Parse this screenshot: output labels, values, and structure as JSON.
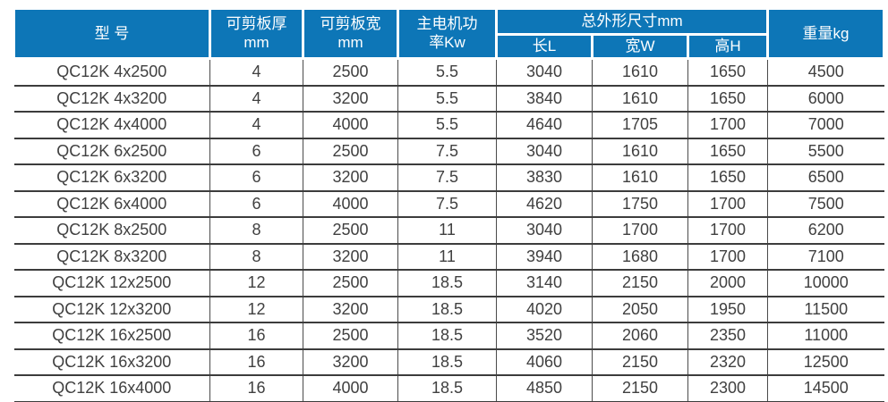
{
  "colors": {
    "header_bg": "#0d76b7",
    "header_text": "#ffffff",
    "body_text": "#404040",
    "row_line": "#3c3c3c",
    "column_line": "#4b4b4b",
    "page_bg": "#ffffff"
  },
  "table": {
    "header": {
      "model": "型 号",
      "thickness_line1": "可剪板厚",
      "thickness_line2": "mm",
      "width_line1": "可剪板宽",
      "width_line2": "mm",
      "power_line1": "主电机功",
      "power_line2": "率Kw",
      "dimensions_group": "总外形尺寸mm",
      "length": "长L",
      "width": "宽W",
      "height": "高H",
      "weight": "重量kg"
    },
    "column_keys": [
      "cell-model",
      "cell-shear-thickness-mm",
      "cell-shear-width-mm",
      "cell-motor-power-kw",
      "cell-dim-length",
      "cell-dim-width",
      "cell-dim-height",
      "cell-weight-kg"
    ],
    "rows": [
      [
        "QC12K 4x2500",
        "4",
        "2500",
        "5.5",
        "3040",
        "1610",
        "1650",
        "4500"
      ],
      [
        "QC12K 4x3200",
        "4",
        "3200",
        "5.5",
        "3840",
        "1610",
        "1650",
        "6000"
      ],
      [
        "QC12K 4x4000",
        "4",
        "4000",
        "5.5",
        "4640",
        "1705",
        "1700",
        "7000"
      ],
      [
        "QC12K 6x2500",
        "6",
        "2500",
        "7.5",
        "3040",
        "1610",
        "1650",
        "5500"
      ],
      [
        "QC12K 6x3200",
        "6",
        "3200",
        "7.5",
        "3830",
        "1610",
        "1650",
        "6500"
      ],
      [
        "QC12K 6x4000",
        "6",
        "4000",
        "7.5",
        "4620",
        "1750",
        "1700",
        "7500"
      ],
      [
        "QC12K 8x2500",
        "8",
        "2500",
        "11",
        "3040",
        "1700",
        "1700",
        "6200"
      ],
      [
        "QC12K 8x3200",
        "8",
        "3200",
        "11",
        "3940",
        "1680",
        "1700",
        "7100"
      ],
      [
        "QC12K 12x2500",
        "12",
        "2500",
        "18.5",
        "3140",
        "2150",
        "2000",
        "10000"
      ],
      [
        "QC12K 12x3200",
        "12",
        "3200",
        "18.5",
        "4020",
        "2050",
        "1950",
        "11500"
      ],
      [
        "QC12K 16x2500",
        "16",
        "2500",
        "18.5",
        "3520",
        "2060",
        "2350",
        "11000"
      ],
      [
        "QC12K 16x3200",
        "16",
        "3200",
        "18.5",
        "4060",
        "2150",
        "2320",
        "12500"
      ],
      [
        "QC12K 16x4000",
        "16",
        "4000",
        "18.5",
        "4850",
        "2150",
        "2300",
        "14500"
      ]
    ]
  }
}
